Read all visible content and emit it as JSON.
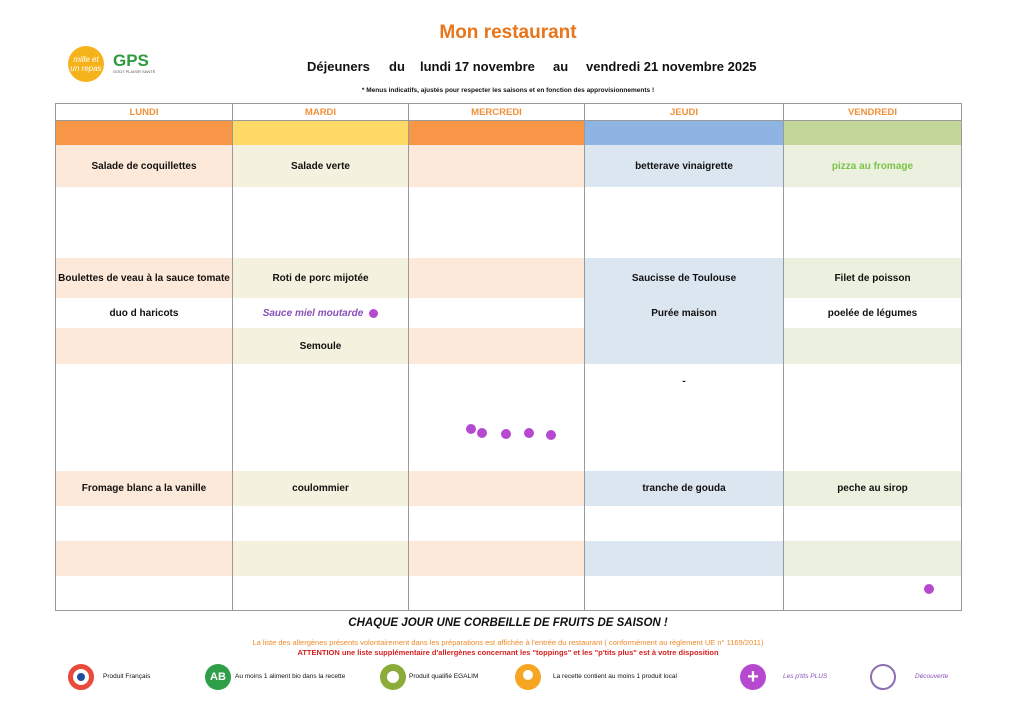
{
  "header": {
    "title": "Mon restaurant",
    "logo_mille_text": "mille et un repas",
    "logo_gps_text": "GPS",
    "logo_gps_tagline": "GOÛT PLAISIR SANTÉ",
    "date_label": "Déjeuners",
    "date_from_word": "du",
    "date_from": "lundi 17 novembre",
    "date_to_word": "au",
    "date_to": "vendredi 21 novembre 2025",
    "note": "* Menus indicatifs, ajustés pour respecter les saisons et en fonction des approvisionnements !"
  },
  "days": [
    {
      "name": "LUNDI",
      "color": "#f79646",
      "tint": "#fde9d9",
      "entree": "Salade de coquillettes",
      "plat": "Boulettes de veau à la sauce tomate",
      "accomp1": "duo d haricots",
      "accomp2": "",
      "laitier": "Fromage blanc a la vanille",
      "dessert": ""
    },
    {
      "name": "MARDI",
      "color": "#ffd966",
      "tint": "#f4f1de",
      "entree": "Salade verte",
      "plat": "Roti de porc mijotée",
      "accomp1": "Sauce miel moutarde",
      "accomp2": "Semoule",
      "laitier": "coulommier",
      "dessert": ""
    },
    {
      "name": "MERCREDI",
      "color": "#f79646",
      "tint": "#fde9d9",
      "entree": "",
      "plat": "",
      "accomp1": "",
      "accomp2": "",
      "laitier": "",
      "dessert": ""
    },
    {
      "name": "JEUDI",
      "color": "#8eb4e3",
      "tint": "#dce6f1",
      "entree": "betterave vinaigrette",
      "plat": "Saucisse de Toulouse",
      "accomp1": "Purée maison",
      "accomp2": "",
      "dessert_extra": "-",
      "laitier": "tranche de gouda",
      "dessert": ""
    },
    {
      "name": "VENDREDI",
      "color": "#c4d79b",
      "tint": "#ebf1de",
      "entree": "pizza au fromage",
      "plat": "Filet de poisson",
      "accomp1": "poelée de légumes",
      "accomp2": "",
      "laitier": "peche au sirop",
      "dessert": ""
    }
  ],
  "footer": {
    "fruits": "CHAQUE JOUR UNE CORBEILLE DE FRUITS DE SAISON !",
    "allergens_1": "La liste des allergènes présents volontairement dans les préparations est affichée à l'entrée du restaurant ( conformément au règlement UE n° 1169/2011)",
    "allergens_2": "ATTENTION une liste supplémentaire d'allergènes concernant les \"toppings\" et les \"p'tits plus\" est à votre disposition"
  },
  "legend": [
    {
      "icon": "french-flag-icon",
      "label": "Produit Français"
    },
    {
      "icon": "organic-ab-icon",
      "label": "Au moins 1 aliment bio dans la recette"
    },
    {
      "icon": "egalim-icon",
      "label": "Produit qualifié EGALIM"
    },
    {
      "icon": "local-pin-icon",
      "label": "La recette contient au moins 1 produit local"
    },
    {
      "icon": "plus-icon",
      "label": "Les p'tits PLUS"
    },
    {
      "icon": "discovery-icon",
      "label": "Découverte"
    }
  ],
  "colors": {
    "accent": "#e8751a",
    "purple": "#b54ad1"
  }
}
